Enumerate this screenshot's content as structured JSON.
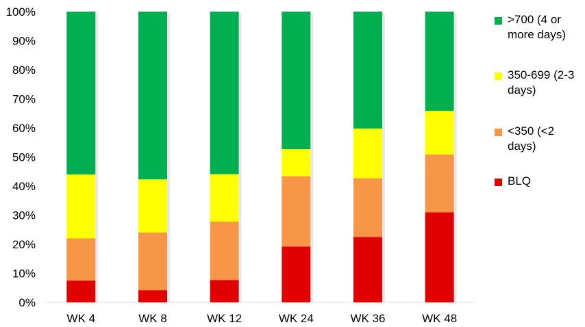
{
  "chart_data": {
    "type": "bar",
    "stacked": true,
    "percent_axis": true,
    "ylim": [
      0,
      100
    ],
    "grid": false,
    "legend_position": "right",
    "y_tick_values": [
      0,
      10,
      20,
      30,
      40,
      50,
      60,
      70,
      80,
      90,
      100
    ],
    "y_tick_labels": [
      "0%",
      "10%",
      "20%",
      "30%",
      "40%",
      "50%",
      "60%",
      "70%",
      "80%",
      "90%",
      "100%"
    ],
    "categories": [
      "WK 4",
      "WK 8",
      "WK 12",
      "WK 24",
      "WK 36",
      "WK 48"
    ],
    "series": [
      {
        "name": "BLQ",
        "color": "#e00000",
        "values": [
          7.5,
          4.2,
          7.7,
          19.2,
          22.5,
          31.0
        ]
      },
      {
        "name": "<350 (<2 days)",
        "color": "#f79646",
        "values": [
          14.5,
          19.8,
          20.1,
          24.2,
          20.2,
          19.9
        ]
      },
      {
        "name": "350-699 (2-3 days)",
        "color": "#ffff00",
        "values": [
          22.0,
          18.3,
          16.3,
          9.3,
          17.1,
          15.0
        ]
      },
      {
        "name": ">700 (4 or more days)",
        "color": "#00b050",
        "values": [
          56.0,
          57.7,
          55.9,
          47.3,
          40.2,
          34.1
        ]
      }
    ]
  }
}
